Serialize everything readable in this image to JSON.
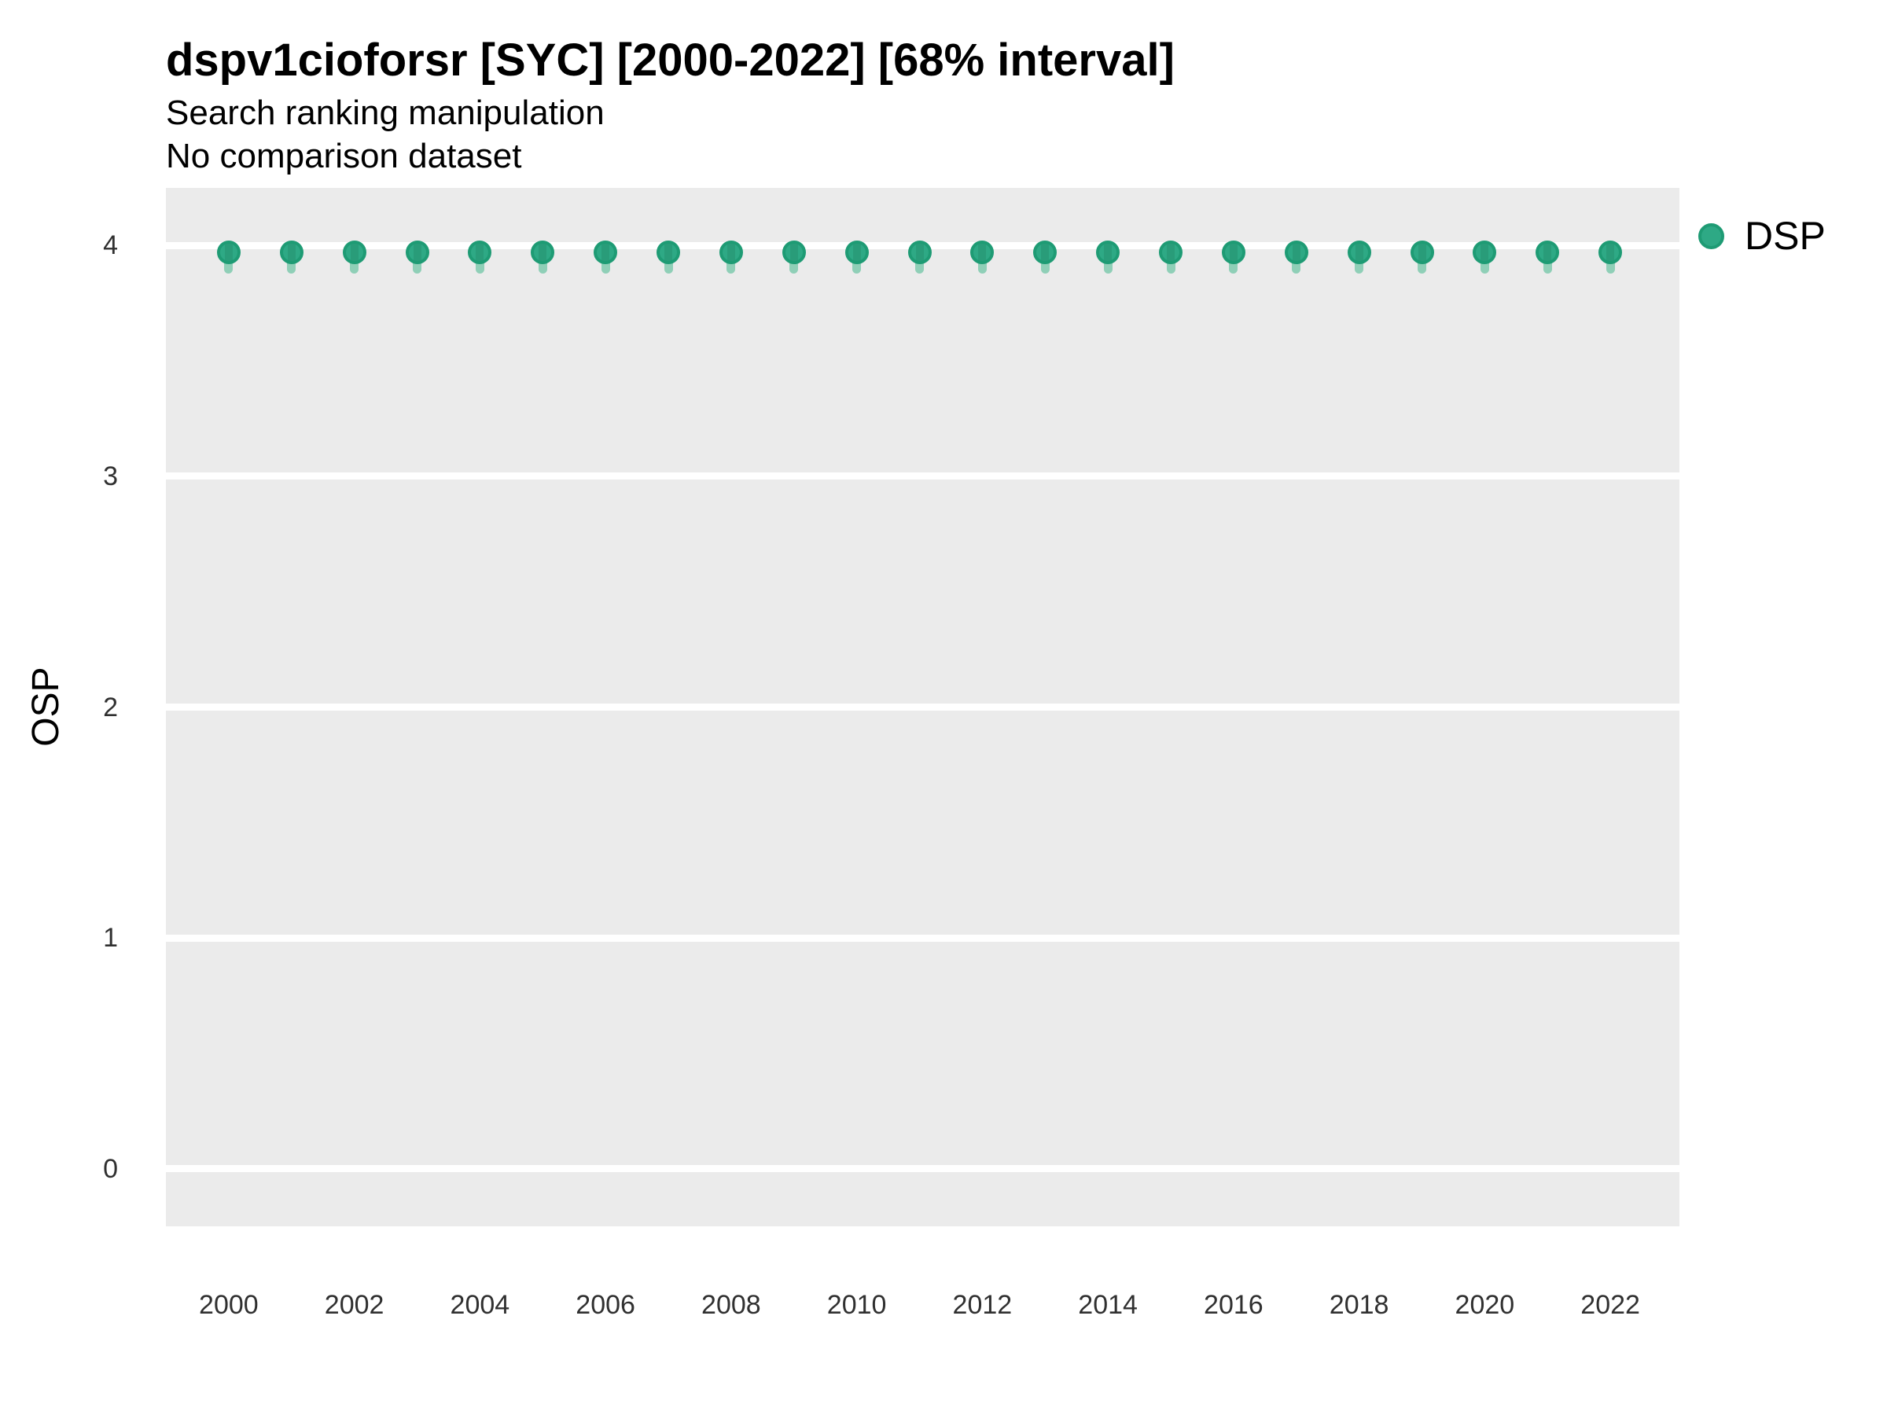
{
  "header": {
    "title": "dspv1cioforsr [SYC] [2000-2022] [68% interval]",
    "subtitle": "Search ranking manipulation",
    "note": "No comparison dataset"
  },
  "chart_data": {
    "type": "scatter",
    "title": "dspv1cioforsr [SYC] [2000-2022] [68% interval]",
    "subtitle": "Search ranking manipulation",
    "note": "No comparison dataset",
    "xlabel": "",
    "ylabel": "OSP",
    "interval_label": "68% interval",
    "grid": "horizontal-major-only",
    "legend_position": "right",
    "xlim": [
      1999.0,
      2023.1
    ],
    "ylim": [
      -0.25,
      4.25
    ],
    "yticks": [
      0,
      1,
      2,
      3,
      4
    ],
    "xticks": [
      2000,
      2002,
      2004,
      2006,
      2008,
      2010,
      2012,
      2014,
      2016,
      2018,
      2020,
      2022
    ],
    "x": [
      2000,
      2001,
      2002,
      2003,
      2004,
      2005,
      2006,
      2007,
      2008,
      2009,
      2010,
      2011,
      2012,
      2013,
      2014,
      2015,
      2016,
      2017,
      2018,
      2019,
      2020,
      2021,
      2022
    ],
    "series": [
      {
        "name": "DSP",
        "values": [
          3.97,
          3.97,
          3.97,
          3.97,
          3.97,
          3.97,
          3.97,
          3.97,
          3.97,
          3.97,
          3.97,
          3.97,
          3.97,
          3.97,
          3.97,
          3.97,
          3.97,
          3.97,
          3.97,
          3.97,
          3.97,
          3.97,
          3.97
        ],
        "interval_low": [
          3.88,
          3.88,
          3.88,
          3.88,
          3.88,
          3.88,
          3.88,
          3.88,
          3.88,
          3.88,
          3.88,
          3.88,
          3.88,
          3.88,
          3.88,
          3.88,
          3.88,
          3.88,
          3.88,
          3.88,
          3.88,
          3.88,
          3.88
        ],
        "interval_high": [
          4.02,
          4.02,
          4.02,
          4.02,
          4.02,
          4.02,
          4.02,
          4.02,
          4.02,
          4.02,
          4.02,
          4.02,
          4.02,
          4.02,
          4.02,
          4.02,
          4.02,
          4.02,
          4.02,
          4.02,
          4.02,
          4.02,
          4.02
        ]
      }
    ],
    "colors": {
      "point_fill": "#2EA985",
      "point_ring": "#1E9B74",
      "interval_bar": "#8FCFB7",
      "plot_background": "#EBEBEB",
      "gridline": "#FFFFFF",
      "title_text": "#000000",
      "tick_text": "#303030"
    }
  }
}
